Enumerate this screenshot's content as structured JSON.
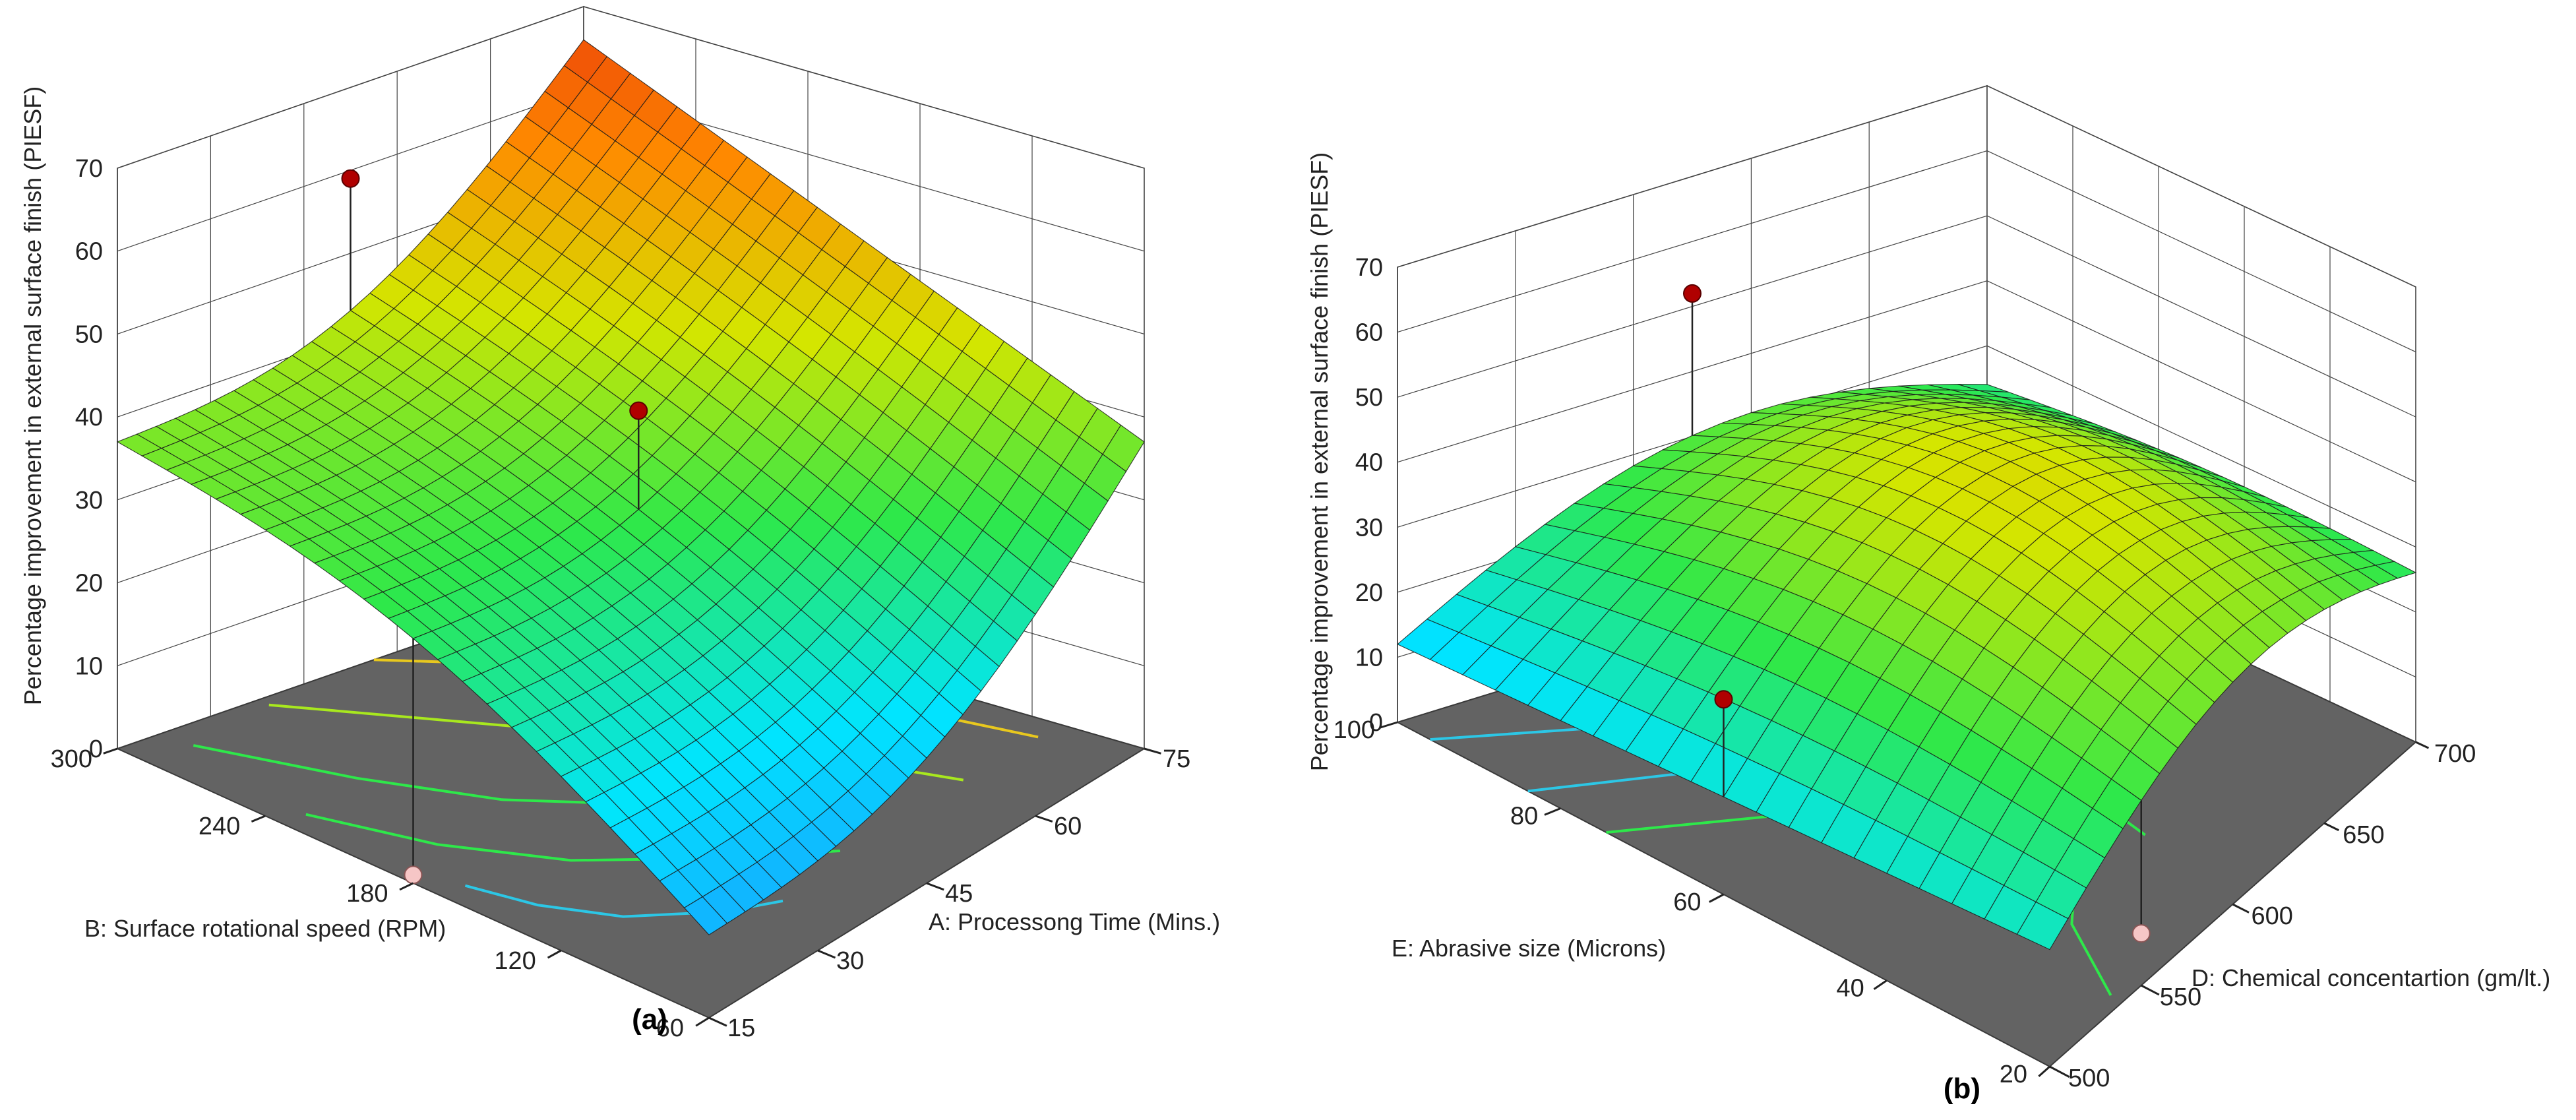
{
  "chart_data": [
    {
      "type": "surface",
      "caption": "(a)",
      "zlabel": "Percentage improvement in external surface finish (PIESF)",
      "xlabel": "A: Processong Time (Mins.)",
      "ylabel": "B: Surface rotational speed (RPM)",
      "xticks": [
        "15",
        "30",
        "45",
        "60",
        "75"
      ],
      "yticks": [
        "60",
        "120",
        "180",
        "240",
        "300"
      ],
      "zticks": [
        "0",
        "10",
        "20",
        "30",
        "40",
        "50",
        "60",
        "70"
      ],
      "xlim": [
        15,
        75
      ],
      "ylim": [
        60,
        300
      ],
      "zlim": [
        0,
        70
      ],
      "grid": true,
      "surface_corners": {
        "A15_B60": 10,
        "A75_B60": 37,
        "A15_B300": 37,
        "A75_B300": 66,
        "min_value": 8,
        "max_value": 70
      },
      "design_points": [
        {
          "A": 45,
          "B": 300,
          "value": 59
        },
        {
          "A": 45,
          "B": 180,
          "value": 44
        },
        {
          "A": 75,
          "B": 180,
          "value": 38
        },
        {
          "A": 15,
          "B": 180,
          "value": 1
        }
      ],
      "colormap": [
        "#1e90ff",
        "#00e5ff",
        "#2ee84a",
        "#d4e600",
        "#ff8a00",
        "#e8300a"
      ]
    },
    {
      "type": "surface",
      "caption": "(b)",
      "zlabel": "Percentage improvement in external surface finish (PIESF)",
      "xlabel": "D: Chemical concentartion (gm/lt.)",
      "ylabel": "E: Abrasive size (Microns)",
      "xticks": [
        "500",
        "550",
        "600",
        "650",
        "700"
      ],
      "yticks": [
        "20",
        "40",
        "60",
        "80",
        "100"
      ],
      "zticks": [
        "0",
        "10",
        "20",
        "30",
        "40",
        "50",
        "60",
        "70"
      ],
      "xlim": [
        500,
        700
      ],
      "ylim": [
        20,
        100
      ],
      "zlim": [
        0,
        70
      ],
      "grid": true,
      "surface_corners": {
        "D500_E20": 18,
        "D700_E20": 24,
        "D500_E100": 12,
        "D700_E100": 22,
        "min_value": 10,
        "max_value": 44
      },
      "design_points": [
        {
          "D": 600,
          "E": 100,
          "value": 52
        },
        {
          "D": 600,
          "E": 60,
          "value": 38
        },
        {
          "D": 500,
          "E": 60,
          "value": 30
        },
        {
          "D": 550,
          "E": 20,
          "value": 8
        },
        {
          "D": 650,
          "E": 100,
          "value": 2
        }
      ],
      "colormap": [
        "#1e90ff",
        "#00e5ff",
        "#2ee84a",
        "#d4e600",
        "#ff8a00",
        "#e8300a"
      ]
    }
  ]
}
